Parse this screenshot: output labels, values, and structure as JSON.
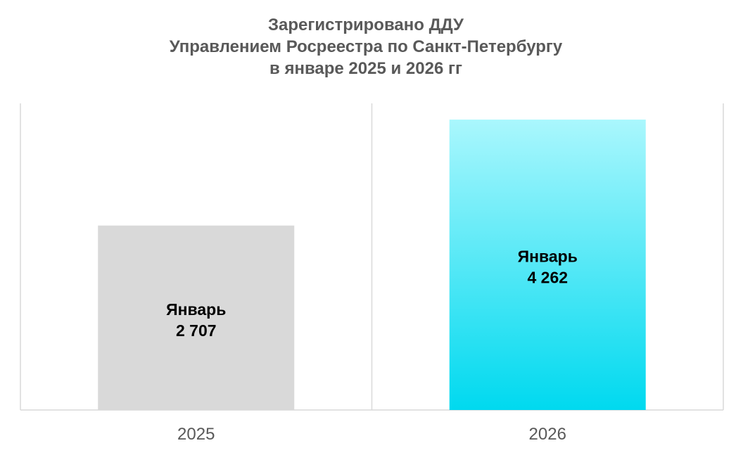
{
  "chart_data": {
    "type": "bar",
    "title": [
      "Зарегистрировано ДДУ",
      "Управлением Росреестра по Санкт-Петербургу",
      "в январе 2025 и 2026 гг"
    ],
    "categories": [
      "2025",
      "2026"
    ],
    "values": [
      2707,
      4262
    ],
    "data_labels": [
      {
        "name": "Январь",
        "value": "2 707"
      },
      {
        "name": "Январь",
        "value": "4 262"
      }
    ],
    "bar_colors": [
      {
        "top": "#d9d9d9",
        "bottom": "#d9d9d9"
      },
      {
        "top": "#aaf7fd",
        "bottom": "#00d9ef"
      }
    ],
    "ylim": [
      0,
      4500
    ],
    "xlabel": "",
    "ylabel": "",
    "grid": "vertical category separators",
    "legend": "none"
  }
}
